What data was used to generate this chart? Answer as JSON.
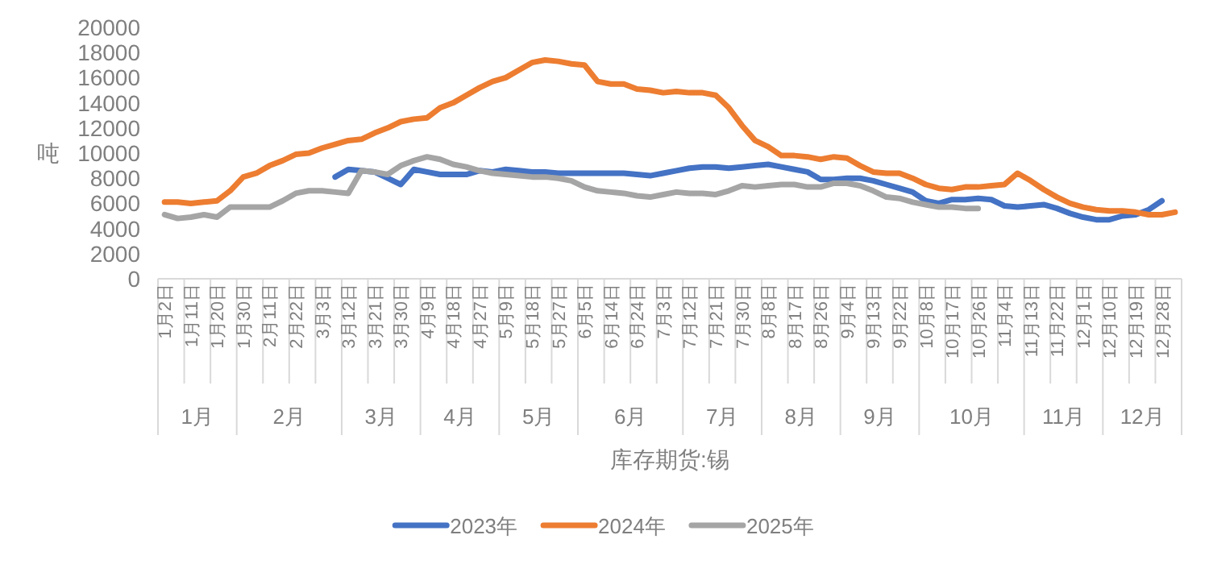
{
  "chart_data": {
    "type": "line",
    "ylabel": "吨",
    "xlabel": "库存期货:锡",
    "legend": "bottom",
    "ylim": [
      0,
      20000
    ],
    "yticks": [
      0,
      2000,
      4000,
      6000,
      8000,
      10000,
      12000,
      14000,
      16000,
      18000,
      20000
    ],
    "categories": [
      "1月2日",
      null,
      "1月11日",
      null,
      "1月20日",
      null,
      "1月30日",
      null,
      "2月11日",
      null,
      "2月22日",
      null,
      "3月3日",
      null,
      "3月12日",
      null,
      "3月21日",
      null,
      "3月30日",
      null,
      "4月9日",
      null,
      "4月18日",
      null,
      "4月27日",
      null,
      "5月9日",
      null,
      "5月18日",
      null,
      "5月27日",
      null,
      "6月5日",
      null,
      "6月14日",
      null,
      "6月24日",
      null,
      "7月3日",
      null,
      "7月12日",
      null,
      "7月21日",
      null,
      "7月30日",
      null,
      "8月8日",
      null,
      "8月17日",
      null,
      "8月26日",
      null,
      "9月4日",
      null,
      "9月13日",
      null,
      "9月22日",
      null,
      "10月8日",
      null,
      "10月17日",
      null,
      "10月26日",
      null,
      "11月4日",
      null,
      "11月13日",
      null,
      "11月22日",
      null,
      "12月1日",
      null,
      "12月10日",
      null,
      "12月19日",
      null,
      "12月28日",
      null
    ],
    "annotations": [
      "1月",
      "2月",
      "3月",
      "4月",
      "5月",
      "6月",
      "7月",
      "8月",
      "9月",
      "10月",
      "11月",
      "12月"
    ],
    "series": [
      {
        "name": "2023年",
        "color": "#4472c4",
        "values": [
          null,
          null,
          null,
          null,
          null,
          null,
          null,
          null,
          null,
          null,
          null,
          null,
          null,
          8100,
          8700,
          8600,
          8500,
          8000,
          7500,
          8700,
          8500,
          8300,
          8300,
          8300,
          8600,
          8500,
          8700,
          8600,
          8500,
          8500,
          8400,
          8400,
          8400,
          8400,
          8400,
          8400,
          8300,
          8200,
          8400,
          8600,
          8800,
          8900,
          8900,
          8800,
          8900,
          9000,
          9100,
          8900,
          8700,
          8500,
          7900,
          7900,
          8000,
          8000,
          7800,
          7500,
          7200,
          6900,
          6200,
          6000,
          6300,
          6300,
          6400,
          6300,
          5800,
          5700,
          5800,
          5900,
          5600,
          5200,
          4900,
          4700,
          4700,
          5000,
          5100,
          5500,
          6200,
          null
        ]
      },
      {
        "name": "2024年",
        "color": "#ed7d31",
        "values": [
          6100,
          6100,
          6000,
          6100,
          6200,
          7000,
          8100,
          8400,
          9000,
          9400,
          9900,
          10000,
          10400,
          10700,
          11000,
          11100,
          11600,
          12000,
          12500,
          12700,
          12800,
          13600,
          14000,
          14600,
          15200,
          15700,
          16000,
          16600,
          17200,
          17400,
          17300,
          17100,
          17000,
          15700,
          15500,
          15500,
          15100,
          15000,
          14800,
          14900,
          14800,
          14800,
          14600,
          13600,
          12200,
          11000,
          10500,
          9800,
          9800,
          9700,
          9500,
          9700,
          9600,
          9000,
          8500,
          8400,
          8400,
          8000,
          7500,
          7200,
          7100,
          7300,
          7300,
          7400,
          7500,
          8400,
          7800,
          7100,
          6500,
          6000,
          5700,
          5500,
          5400,
          5400,
          5300,
          5100,
          5100,
          5300
        ]
      },
      {
        "name": "2025年",
        "color": "#a5a5a5",
        "values": [
          5100,
          4800,
          4900,
          5100,
          4900,
          5700,
          5700,
          5700,
          5700,
          6200,
          6800,
          7000,
          7000,
          6900,
          6800,
          8600,
          8500,
          8300,
          9000,
          9400,
          9700,
          9500,
          9100,
          8900,
          8600,
          8400,
          8300,
          8200,
          8100,
          8100,
          8000,
          7800,
          7300,
          7000,
          6900,
          6800,
          6600,
          6500,
          6700,
          6900,
          6800,
          6800,
          6700,
          7000,
          7400,
          7300,
          7400,
          7500,
          7500,
          7300,
          7300,
          7600,
          7600,
          7400,
          7000,
          6500,
          6400,
          6100,
          5900,
          5700,
          5700,
          5600,
          5600,
          null,
          null,
          null,
          null,
          null,
          null,
          null,
          null,
          null,
          null,
          null,
          null,
          null,
          null,
          null
        ]
      }
    ]
  }
}
